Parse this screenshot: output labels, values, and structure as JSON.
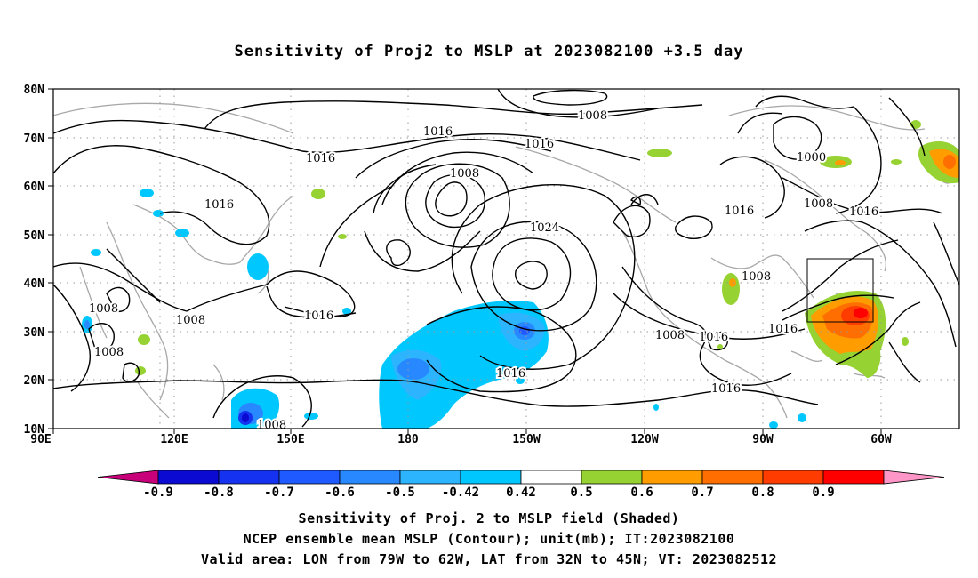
{
  "title": "Sensitivity of Proj2 to MSLP at 2023082100 +3.5 day",
  "axes": {
    "lat_labels": [
      "80N",
      "70N",
      "60N",
      "50N",
      "40N",
      "30N",
      "20N",
      "10N"
    ],
    "lon_labels": [
      "90E",
      "120E",
      "150E",
      "180",
      "150W",
      "120W",
      "90W",
      "60W"
    ]
  },
  "contour_labels": [
    "1008",
    "1016",
    "1016",
    "1016",
    "1008",
    "1024",
    "1000",
    "1008",
    "1016",
    "1016",
    "1008",
    "1016",
    "1016",
    "1008",
    "1016",
    "1016",
    "1016",
    "1008",
    "1008",
    "1008",
    "1008",
    "1016"
  ],
  "colorbar": {
    "labels": [
      "-0.9",
      "-0.8",
      "-0.7",
      "-0.6",
      "-0.5",
      "-0.42",
      "0.42",
      "0.5",
      "0.6",
      "0.7",
      "0.8",
      "0.9"
    ],
    "colors": [
      "#c8007a",
      "#0a0ad2",
      "#1432f0",
      "#1e5aff",
      "#2888ff",
      "#2db4ff",
      "#00c8ff",
      "#ffffff",
      "#96d232",
      "#ff9c00",
      "#ff6e00",
      "#ff3c00",
      "#ff0000",
      "#ff96c8"
    ]
  },
  "valid_area": {
    "lon": [
      -79,
      -62
    ],
    "lat": [
      32,
      45
    ]
  },
  "footer": {
    "line1": "Sensitivity of Proj. 2 to MSLP field (Shaded)",
    "line2": "NCEP ensemble mean MSLP (Contour); unit(mb); IT:2023082100",
    "line3": "Valid area: LON from 79W to 62W, LAT from 32N to 45N; VT: 2023082512"
  }
}
